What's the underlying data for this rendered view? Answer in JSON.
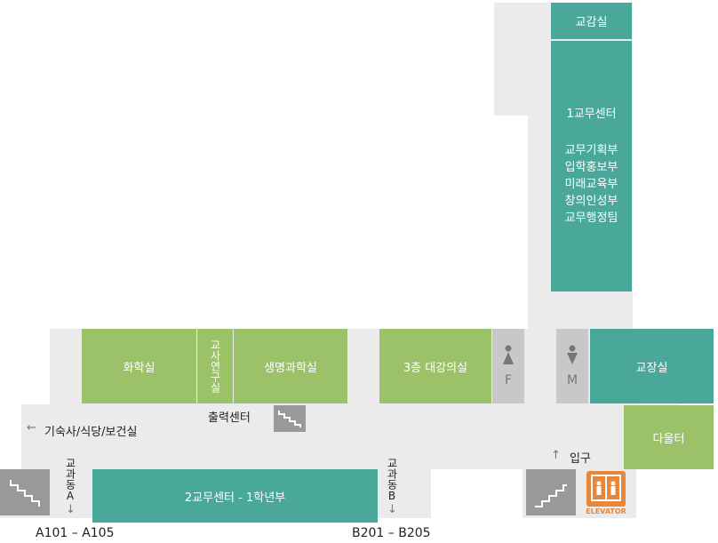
{
  "rooms": {
    "vice_principal": "교감실",
    "admin_center_1": {
      "title": "1교무센터",
      "departments": [
        "교무기획부",
        "입학홍보부",
        "미래교육부",
        "창의인성부",
        "교무행정팀"
      ]
    },
    "chemistry": "화학실",
    "teacher_lab": "교사연구실",
    "life_science": "생명과학실",
    "lecture_hall": "3층 대강의실",
    "restroom_f": "F",
    "restroom_m": "M",
    "principal": "교장실",
    "print_center": "출력센터",
    "daulter": "다울터",
    "admin_center_2": "2교무센터 - 1학년부"
  },
  "directions": {
    "dorm": "기숙사/식당/보건실",
    "entrance": "입구",
    "building_a": "교과동A",
    "building_b": "교과동B",
    "range_a": "A101 – A105",
    "range_b": "B201 – B205"
  },
  "elevator_label": "ELEVATOR",
  "colors": {
    "green": "#9bc169",
    "teal": "#4aa89a",
    "corridor": "#ebebeb",
    "restroom": "#c8c8c8",
    "elevator": "#e8873a"
  }
}
